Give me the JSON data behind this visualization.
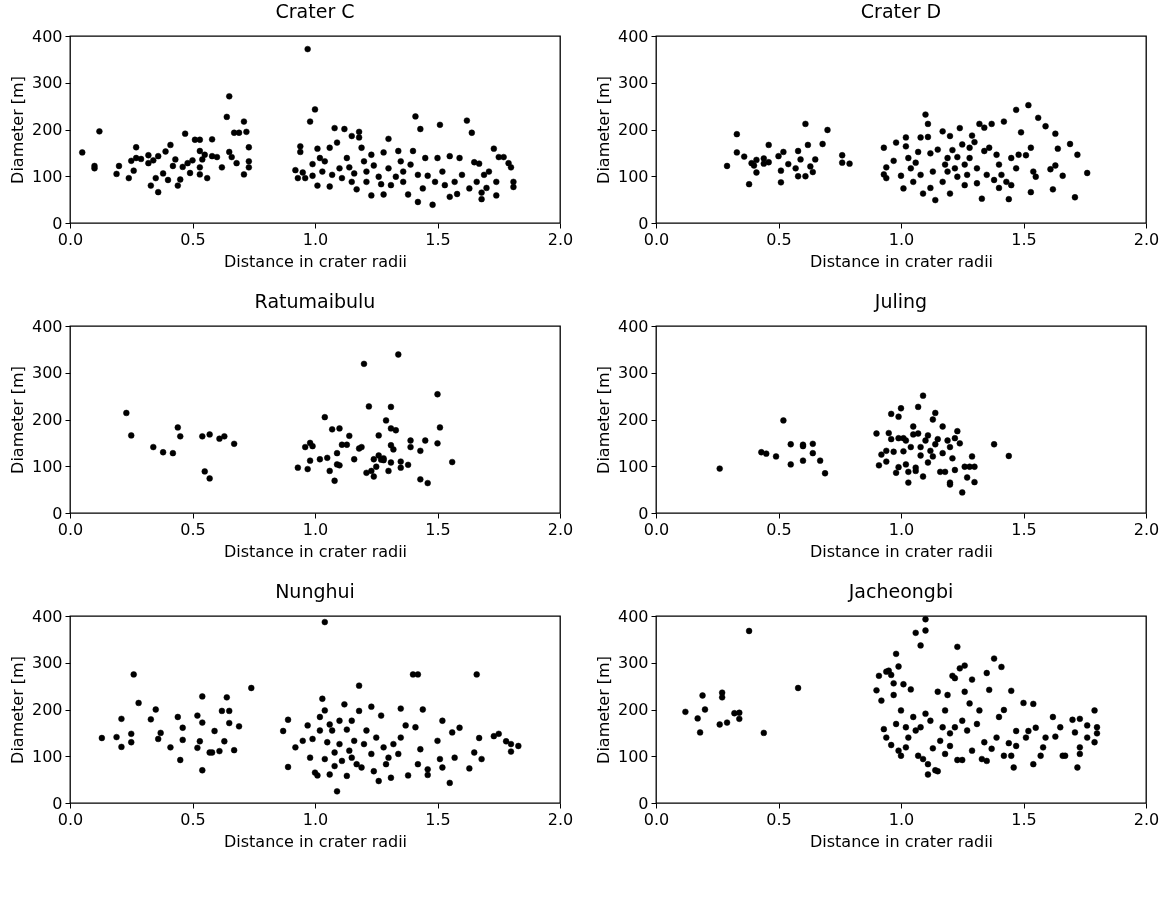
{
  "chart_data": [
    {
      "type": "scatter",
      "title": "Crater C",
      "xlabel": "Distance in crater radii",
      "ylabel": "Diameter [m]",
      "color": "#000000",
      "marker": "circle",
      "xlim": [
        0,
        2
      ],
      "ylim": [
        0,
        400
      ],
      "xticks": [
        {
          "value": 0,
          "label": "0.0"
        },
        {
          "value": 0.5,
          "label": "0.5"
        },
        {
          "value": 1,
          "label": "1.0"
        },
        {
          "value": 1.5,
          "label": "1.5"
        },
        {
          "value": 2,
          "label": "2.0"
        }
      ],
      "yticks": [
        0,
        100,
        200,
        300,
        400
      ],
      "x": [
        0.05,
        0.1,
        0.1,
        0.12,
        0.19,
        0.2,
        0.24,
        0.25,
        0.26,
        0.27,
        0.27,
        0.29,
        0.32,
        0.32,
        0.33,
        0.34,
        0.35,
        0.36,
        0.36,
        0.38,
        0.4,
        0.39,
        0.41,
        0.42,
        0.43,
        0.44,
        0.45,
        0.46,
        0.47,
        0.48,
        0.49,
        0.5,
        0.51,
        0.53,
        0.53,
        0.53,
        0.53,
        0.54,
        0.55,
        0.56,
        0.58,
        0.58,
        0.6,
        0.62,
        0.64,
        0.65,
        0.65,
        0.66,
        0.67,
        0.68,
        0.69,
        0.71,
        0.71,
        0.72,
        0.73,
        0.73,
        0.73,
        0.92,
        0.93,
        0.94,
        0.94,
        0.95,
        0.96,
        0.97,
        0.98,
        0.99,
        0.99,
        1.0,
        1.01,
        1.01,
        1.02,
        1.03,
        1.04,
        1.06,
        1.06,
        1.07,
        1.08,
        1.09,
        1.1,
        1.11,
        1.12,
        1.13,
        1.14,
        1.15,
        1.15,
        1.16,
        1.17,
        1.18,
        1.18,
        1.19,
        1.2,
        1.21,
        1.21,
        1.23,
        1.23,
        1.24,
        1.26,
        1.27,
        1.28,
        1.28,
        1.3,
        1.3,
        1.31,
        1.33,
        1.34,
        1.35,
        1.36,
        1.36,
        1.38,
        1.39,
        1.4,
        1.41,
        1.42,
        1.42,
        1.43,
        1.44,
        1.45,
        1.46,
        1.48,
        1.49,
        1.5,
        1.51,
        1.52,
        1.53,
        1.55,
        1.55,
        1.57,
        1.58,
        1.59,
        1.6,
        1.62,
        1.63,
        1.64,
        1.65,
        1.66,
        1.67,
        1.68,
        1.68,
        1.69,
        1.7,
        1.71,
        1.73,
        1.74,
        1.74,
        1.75,
        1.77,
        1.79,
        1.8,
        1.81,
        1.81
      ],
      "values": [
        151,
        117,
        122,
        196,
        105,
        122,
        96,
        133,
        112,
        162,
        139,
        137,
        145,
        128,
        80,
        134,
        96,
        66,
        143,
        106,
        92,
        153,
        167,
        122,
        136,
        80,
        93,
        120,
        191,
        128,
        107,
        134,
        178,
        178,
        154,
        119,
        104,
        136,
        146,
        96,
        179,
        143,
        141,
        119,
        227,
        271,
        152,
        141,
        193,
        128,
        193,
        104,
        217,
        195,
        162,
        132,
        119,
        113,
        96,
        164,
        152,
        108,
        96,
        372,
        217,
        126,
        101,
        243,
        159,
        80,
        139,
        110,
        132,
        161,
        78,
        103,
        203,
        172,
        117,
        96,
        201,
        139,
        119,
        186,
        88,
        106,
        72,
        183,
        195,
        161,
        132,
        88,
        110,
        59,
        146,
        123,
        99,
        83,
        61,
        151,
        117,
        180,
        81,
        99,
        154,
        132,
        88,
        110,
        61,
        125,
        154,
        228,
        45,
        103,
        201,
        74,
        139,
        101,
        39,
        88,
        139,
        210,
        110,
        81,
        143,
        56,
        88,
        62,
        139,
        103,
        219,
        74,
        193,
        130,
        88,
        127,
        65,
        51,
        103,
        75,
        110,
        159,
        88,
        59,
        141,
        141,
        128,
        119,
        77,
        88
      ]
    },
    {
      "type": "scatter",
      "title": "Crater D",
      "xlabel": "Distance in crater radii",
      "ylabel": "Diameter [m]",
      "color": "#000000",
      "marker": "circle",
      "xlim": [
        0,
        2
      ],
      "ylim": [
        0,
        400
      ],
      "xticks": [
        {
          "value": 0,
          "label": "0.0"
        },
        {
          "value": 0.5,
          "label": "0.5"
        },
        {
          "value": 1,
          "label": "1.0"
        },
        {
          "value": 1.5,
          "label": "1.5"
        },
        {
          "value": 2,
          "label": "2.0"
        }
      ],
      "yticks": [
        0,
        100,
        200,
        300,
        400
      ],
      "x": [
        0.29,
        0.33,
        0.33,
        0.36,
        0.38,
        0.39,
        0.4,
        0.41,
        0.41,
        0.44,
        0.44,
        0.46,
        0.46,
        0.5,
        0.51,
        0.51,
        0.52,
        0.54,
        0.57,
        0.58,
        0.58,
        0.59,
        0.61,
        0.61,
        0.62,
        0.63,
        0.64,
        0.65,
        0.68,
        0.7,
        0.76,
        0.76,
        0.79,
        0.93,
        0.93,
        0.94,
        0.94,
        0.98,
        0.97,
        1.0,
        1.01,
        1.02,
        1.02,
        1.03,
        1.04,
        1.05,
        1.06,
        1.07,
        1.08,
        1.08,
        1.09,
        1.1,
        1.11,
        1.11,
        1.12,
        1.12,
        1.13,
        1.14,
        1.15,
        1.17,
        1.17,
        1.18,
        1.19,
        1.19,
        1.2,
        1.2,
        1.21,
        1.22,
        1.23,
        1.23,
        1.24,
        1.25,
        1.26,
        1.26,
        1.27,
        1.28,
        1.28,
        1.29,
        1.3,
        1.31,
        1.31,
        1.32,
        1.33,
        1.34,
        1.34,
        1.35,
        1.36,
        1.37,
        1.38,
        1.39,
        1.4,
        1.4,
        1.41,
        1.42,
        1.43,
        1.44,
        1.45,
        1.45,
        1.47,
        1.47,
        1.48,
        1.49,
        1.51,
        1.52,
        1.53,
        1.53,
        1.54,
        1.55,
        1.56,
        1.59,
        1.61,
        1.62,
        1.63,
        1.63,
        1.64,
        1.66,
        1.69,
        1.71,
        1.72,
        1.76
      ],
      "values": [
        122,
        190,
        151,
        142,
        83,
        128,
        123,
        135,
        108,
        138,
        127,
        167,
        130,
        143,
        112,
        87,
        152,
        126,
        117,
        154,
        100,
        136,
        212,
        100,
        167,
        121,
        109,
        136,
        169,
        199,
        145,
        129,
        127,
        161,
        104,
        119,
        96,
        172,
        133,
        101,
        74,
        183,
        164,
        139,
        117,
        88,
        129,
        152,
        183,
        103,
        63,
        232,
        212,
        184,
        75,
        149,
        110,
        49,
        157,
        196,
        88,
        125,
        139,
        110,
        186,
        63,
        156,
        117,
        99,
        141,
        203,
        168,
        125,
        81,
        103,
        139,
        161,
        187,
        173,
        117,
        85,
        212,
        52,
        154,
        204,
        103,
        161,
        212,
        92,
        146,
        75,
        125,
        103,
        217,
        88,
        51,
        81,
        139,
        117,
        242,
        146,
        194,
        145,
        252,
        66,
        161,
        110,
        99,
        225,
        207,
        115,
        72,
        123,
        191,
        159,
        101,
        169,
        55,
        146,
        107
      ]
    },
    {
      "type": "scatter",
      "title": "Ratumaibulu",
      "xlabel": "Distance in crater radii",
      "ylabel": "Diameter [m]",
      "color": "#000000",
      "marker": "circle",
      "xlim": [
        0,
        2
      ],
      "ylim": [
        0,
        400
      ],
      "xticks": [
        {
          "value": 0,
          "label": "0.0"
        },
        {
          "value": 0.5,
          "label": "0.5"
        },
        {
          "value": 1,
          "label": "1.0"
        },
        {
          "value": 1.5,
          "label": "1.5"
        },
        {
          "value": 2,
          "label": "2.0"
        }
      ],
      "yticks": [
        0,
        100,
        200,
        300,
        400
      ],
      "x": [
        0.23,
        0.25,
        0.34,
        0.38,
        0.42,
        0.44,
        0.45,
        0.54,
        0.55,
        0.57,
        0.57,
        0.61,
        0.63,
        0.67,
        0.93,
        0.96,
        0.97,
        0.98,
        0.98,
        0.99,
        1.02,
        1.04,
        1.05,
        1.06,
        1.07,
        1.08,
        1.09,
        1.09,
        1.1,
        1.1,
        1.11,
        1.13,
        1.14,
        1.16,
        1.18,
        1.19,
        1.2,
        1.21,
        1.22,
        1.23,
        1.24,
        1.24,
        1.25,
        1.26,
        1.26,
        1.27,
        1.28,
        1.28,
        1.29,
        1.3,
        1.31,
        1.31,
        1.31,
        1.31,
        1.32,
        1.33,
        1.34,
        1.35,
        1.35,
        1.38,
        1.39,
        1.39,
        1.43,
        1.43,
        1.45,
        1.46,
        1.5,
        1.5,
        1.51,
        1.56
      ],
      "values": [
        214,
        166,
        141,
        130,
        128,
        183,
        164,
        164,
        89,
        168,
        74,
        159,
        164,
        148,
        97,
        141,
        94,
        112,
        150,
        143,
        115,
        205,
        118,
        90,
        179,
        69,
        104,
        128,
        181,
        102,
        146,
        146,
        165,
        115,
        138,
        141,
        319,
        86,
        228,
        90,
        115,
        78,
        99,
        123,
        166,
        114,
        117,
        113,
        198,
        90,
        227,
        145,
        181,
        108,
        136,
        177,
        339,
        97,
        110,
        103,
        141,
        155,
        72,
        133,
        155,
        64,
        254,
        149,
        183,
        109
      ]
    },
    {
      "type": "scatter",
      "title": "Juling",
      "xlabel": "Distance in crater radii",
      "ylabel": "Diameter [m]",
      "color": "#000000",
      "marker": "circle",
      "xlim": [
        0,
        2
      ],
      "ylim": [
        0,
        400
      ],
      "xticks": [
        {
          "value": 0,
          "label": "0.0"
        },
        {
          "value": 0.5,
          "label": "0.5"
        },
        {
          "value": 1,
          "label": "1.0"
        },
        {
          "value": 1.5,
          "label": "1.5"
        },
        {
          "value": 2,
          "label": "2.0"
        }
      ],
      "yticks": [
        0,
        100,
        200,
        300,
        400
      ],
      "x": [
        0.26,
        0.43,
        0.45,
        0.49,
        0.52,
        0.55,
        0.55,
        0.6,
        0.6,
        0.6,
        0.64,
        0.64,
        0.67,
        0.69,
        0.9,
        0.91,
        0.92,
        0.94,
        0.94,
        0.95,
        0.96,
        0.96,
        0.97,
        0.98,
        0.99,
        0.99,
        1.0,
        0.99,
        1.01,
        1.01,
        1.02,
        1.02,
        1.03,
        1.03,
        1.04,
        1.05,
        1.05,
        1.06,
        1.06,
        1.07,
        1.07,
        1.08,
        1.08,
        1.09,
        1.09,
        1.1,
        1.11,
        1.11,
        1.12,
        1.13,
        1.13,
        1.14,
        1.14,
        1.15,
        1.16,
        1.17,
        1.17,
        1.18,
        1.19,
        1.2,
        1.2,
        1.2,
        1.21,
        1.22,
        1.22,
        1.23,
        1.24,
        1.25,
        1.26,
        1.27,
        1.28,
        1.29,
        1.3,
        1.3,
        1.38,
        1.44
      ],
      "values": [
        95,
        130,
        127,
        121,
        198,
        147,
        104,
        146,
        112,
        143,
        148,
        128,
        112,
        85,
        170,
        102,
        125,
        110,
        133,
        171,
        158,
        212,
        131,
        86,
        160,
        206,
        224,
        98,
        132,
        160,
        104,
        155,
        65,
        88,
        141,
        185,
        168,
        97,
        90,
        227,
        170,
        123,
        141,
        78,
        251,
        155,
        108,
        166,
        133,
        121,
        200,
        214,
        147,
        158,
        88,
        185,
        128,
        88,
        155,
        141,
        61,
        65,
        117,
        160,
        92,
        175,
        149,
        44,
        99,
        76,
        99,
        121,
        66,
        99,
        147,
        122
      ]
    },
    {
      "type": "scatter",
      "title": "Nunghui",
      "xlabel": "Distance in crater radii",
      "ylabel": "Diameter [m]",
      "color": "#000000",
      "marker": "circle",
      "xlim": [
        0,
        2
      ],
      "ylim": [
        0,
        400
      ],
      "xticks": [
        {
          "value": 0,
          "label": "0.0"
        },
        {
          "value": 0.5,
          "label": "0.5"
        },
        {
          "value": 1,
          "label": "1.0"
        },
        {
          "value": 1.5,
          "label": "1.5"
        },
        {
          "value": 2,
          "label": "2.0"
        }
      ],
      "yticks": [
        0,
        100,
        200,
        300,
        400
      ],
      "x": [
        0.13,
        0.19,
        0.21,
        0.21,
        0.25,
        0.25,
        0.26,
        0.28,
        0.33,
        0.35,
        0.36,
        0.37,
        0.41,
        0.44,
        0.45,
        0.46,
        0.46,
        0.52,
        0.52,
        0.53,
        0.54,
        0.54,
        0.54,
        0.57,
        0.58,
        0.59,
        0.61,
        0.62,
        0.63,
        0.64,
        0.65,
        0.65,
        0.67,
        0.69,
        0.74,
        0.87,
        0.89,
        0.89,
        0.92,
        0.95,
        0.97,
        0.98,
        0.99,
        1.0,
        1.01,
        1.02,
        1.02,
        1.03,
        1.04,
        1.04,
        1.04,
        1.05,
        1.06,
        1.06,
        1.07,
        1.08,
        1.08,
        1.09,
        1.1,
        1.1,
        1.11,
        1.12,
        1.13,
        1.13,
        1.14,
        1.15,
        1.15,
        1.16,
        1.17,
        1.18,
        1.18,
        1.19,
        1.2,
        1.21,
        1.23,
        1.23,
        1.24,
        1.25,
        1.26,
        1.27,
        1.28,
        1.29,
        1.3,
        1.31,
        1.32,
        1.34,
        1.35,
        1.35,
        1.37,
        1.38,
        1.4,
        1.42,
        1.41,
        1.42,
        1.43,
        1.44,
        1.46,
        1.46,
        1.5,
        1.51,
        1.52,
        1.52,
        1.55,
        1.56,
        1.57,
        1.59,
        1.63,
        1.65,
        1.66,
        1.67,
        1.68,
        1.73,
        1.75,
        1.78,
        1.8,
        1.8,
        1.83
      ],
      "values": [
        139,
        141,
        180,
        120,
        130,
        148,
        275,
        214,
        179,
        200,
        137,
        150,
        119,
        184,
        92,
        135,
        161,
        118,
        187,
        132,
        70,
        172,
        228,
        108,
        108,
        154,
        111,
        197,
        132,
        226,
        171,
        197,
        113,
        164,
        246,
        154,
        178,
        77,
        119,
        133,
        166,
        97,
        137,
        65,
        59,
        155,
        184,
        223,
        94,
        387,
        198,
        130,
        61,
        168,
        155,
        79,
        108,
        25,
        176,
        126,
        90,
        211,
        58,
        157,
        112,
        176,
        97,
        133,
        83,
        197,
        251,
        76,
        126,
        155,
        206,
        105,
        68,
        140,
        47,
        187,
        119,
        83,
        97,
        54,
        126,
        105,
        202,
        140,
        166,
        59,
        275,
        275,
        162,
        83,
        115,
        200,
        60,
        72,
        133,
        94,
        176,
        76,
        43,
        151,
        97,
        161,
        74,
        108,
        275,
        139,
        94,
        143,
        148,
        132,
        110,
        126,
        122
      ]
    },
    {
      "type": "scatter",
      "title": "Jacheongbi",
      "xlabel": "Distance in crater radii",
      "ylabel": "Diameter [m]",
      "color": "#000000",
      "marker": "circle",
      "xlim": [
        0,
        2
      ],
      "ylim": [
        0,
        400
      ],
      "xticks": [
        {
          "value": 0,
          "label": "0.0"
        },
        {
          "value": 0.5,
          "label": "0.5"
        },
        {
          "value": 1,
          "label": "1.0"
        },
        {
          "value": 1.5,
          "label": "1.5"
        },
        {
          "value": 2,
          "label": "2.0"
        }
      ],
      "yticks": [
        0,
        100,
        200,
        300,
        400
      ],
      "x": [
        0.12,
        0.17,
        0.18,
        0.19,
        0.2,
        0.26,
        0.27,
        0.27,
        0.29,
        0.32,
        0.34,
        0.34,
        0.38,
        0.44,
        0.58,
        0.9,
        0.91,
        0.92,
        0.93,
        0.94,
        0.94,
        0.95,
        0.96,
        0.96,
        0.97,
        0.97,
        0.98,
        0.98,
        0.99,
        0.99,
        1.0,
        1.0,
        1.01,
        1.02,
        1.02,
        1.03,
        1.04,
        1.05,
        1.06,
        1.06,
        1.07,
        1.08,
        1.08,
        1.09,
        1.1,
        1.1,
        1.1,
        1.11,
        1.11,
        1.12,
        1.13,
        1.14,
        1.15,
        1.15,
        1.16,
        1.17,
        1.18,
        1.18,
        1.19,
        1.2,
        1.2,
        1.21,
        1.22,
        1.22,
        1.23,
        1.23,
        1.24,
        1.25,
        1.25,
        1.26,
        1.26,
        1.27,
        1.28,
        1.29,
        1.29,
        1.31,
        1.32,
        1.33,
        1.34,
        1.35,
        1.35,
        1.36,
        1.37,
        1.38,
        1.39,
        1.4,
        1.41,
        1.42,
        1.42,
        1.44,
        1.45,
        1.45,
        1.46,
        1.47,
        1.47,
        1.5,
        1.51,
        1.52,
        1.54,
        1.54,
        1.55,
        1.57,
        1.58,
        1.59,
        1.62,
        1.63,
        1.65,
        1.66,
        1.67,
        1.7,
        1.71,
        1.72,
        1.73,
        1.73,
        1.73,
        1.76,
        1.76,
        1.79,
        1.79,
        1.8,
        1.8
      ],
      "values": [
        195,
        181,
        151,
        230,
        200,
        168,
        236,
        226,
        172,
        192,
        193,
        180,
        368,
        150,
        246,
        241,
        272,
        219,
        158,
        140,
        281,
        283,
        274,
        124,
        256,
        231,
        319,
        169,
        292,
        112,
        101,
        198,
        254,
        162,
        119,
        140,
        243,
        184,
        155,
        364,
        101,
        337,
        162,
        94,
        369,
        393,
        191,
        83,
        61,
        176,
        117,
        70,
        238,
        68,
        133,
        162,
        105,
        198,
        231,
        122,
        149,
        272,
        267,
        162,
        334,
        92,
        288,
        176,
        92,
        294,
        238,
        155,
        213,
        264,
        112,
        169,
        198,
        94,
        130,
        90,
        278,
        242,
        116,
        309,
        140,
        184,
        291,
        199,
        101,
        128,
        240,
        101,
        76,
        154,
        122,
        214,
        140,
        154,
        83,
        212,
        161,
        101,
        119,
        140,
        184,
        142,
        162,
        101,
        101,
        178,
        151,
        76,
        119,
        105,
        180,
        166,
        140,
        198,
        130,
        149,
        162
      ]
    }
  ]
}
